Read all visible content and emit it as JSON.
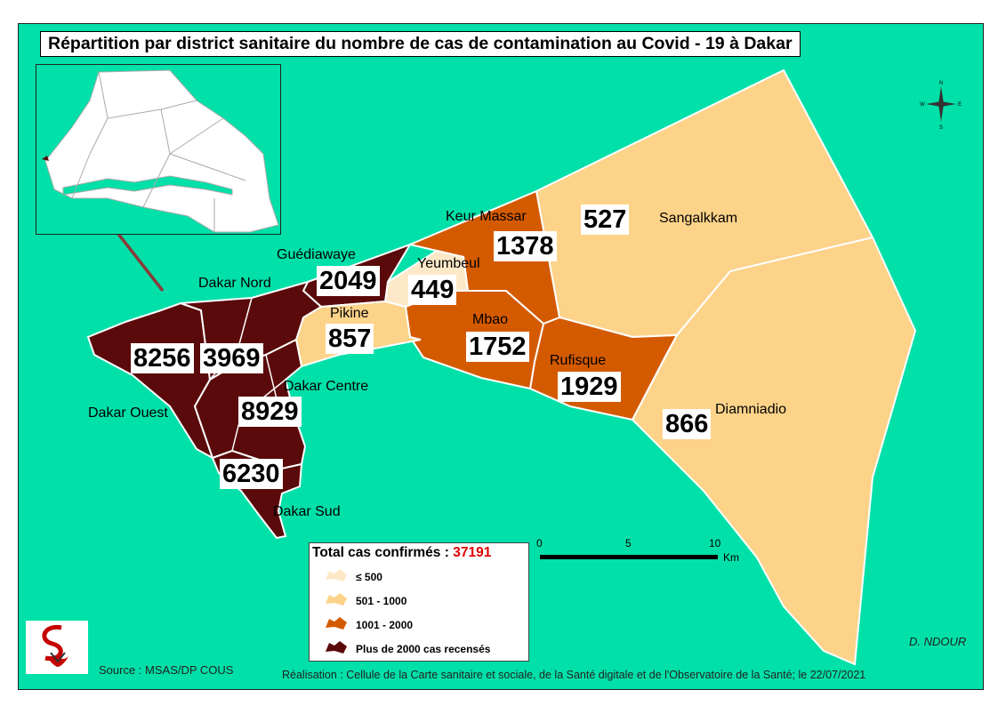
{
  "title": "Répartition par district sanitaire du nombre de cas de contamination au Covid - 19 à Dakar",
  "colors": {
    "sea": "#00e0a8",
    "class_le_500": "#fde9c8",
    "class_501_1000": "#fdd38a",
    "class_1001_2000": "#d45a00",
    "class_gt_2000": "#5a0a0a",
    "total_red": "#e00000"
  },
  "districts": [
    {
      "name": "Dakar Nord",
      "cases": "3969"
    },
    {
      "name": "Dakar Ouest",
      "cases": "8256"
    },
    {
      "name": "Dakar Centre",
      "cases": "8929"
    },
    {
      "name": "Dakar Sud",
      "cases": "6230"
    },
    {
      "name": "Guédiawaye",
      "cases": "2049"
    },
    {
      "name": "Pikine",
      "cases": "857"
    },
    {
      "name": "Yeumbeul",
      "cases": "449"
    },
    {
      "name": "Keur Massar",
      "cases": "1378"
    },
    {
      "name": "Mbao",
      "cases": "1752"
    },
    {
      "name": "Rufisque",
      "cases": "1929"
    },
    {
      "name": "Sangalkkam",
      "cases": "527"
    },
    {
      "name": "Diamniadio",
      "cases": "866"
    }
  ],
  "legend": {
    "total_label": "Total cas confirmés :",
    "total_value": "37191",
    "items": [
      {
        "label": "≤  500",
        "color": "#fde9c8"
      },
      {
        "label": "501 - 1000",
        "color": "#fdd38a"
      },
      {
        "label": "1001 - 2000",
        "color": "#d45a00"
      },
      {
        "label": "Plus de 2000 cas recensés",
        "color": "#5a0a0a"
      }
    ]
  },
  "scale_bar": {
    "ticks": [
      "0",
      "5",
      "10"
    ],
    "unit": "Km"
  },
  "compass": {
    "n": "N",
    "s": "S",
    "e": "E",
    "w": "W"
  },
  "footer": {
    "source": "Source : MSAS/DP COUS",
    "realisation": "Réalisation : Cellule de la Carte sanitaire et sociale, de la Santé digitale  et de l'Observatoire de la Santé; le 22/07/2021",
    "author": "D. NDOUR"
  }
}
